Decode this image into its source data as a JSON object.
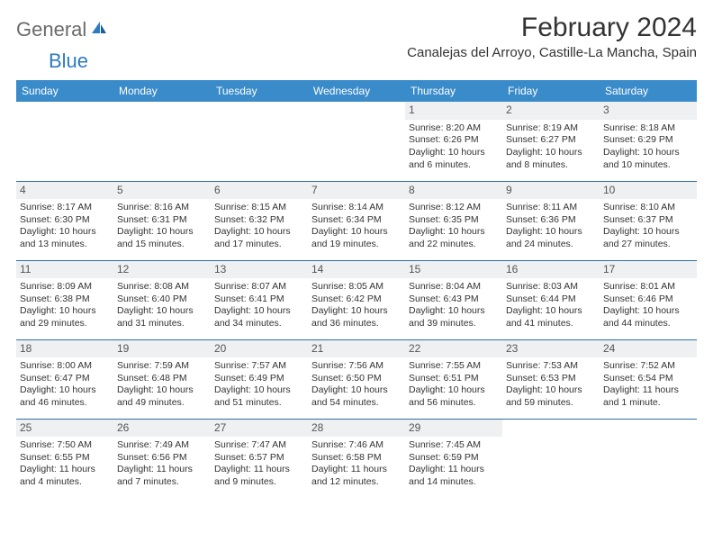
{
  "logo": {
    "part1": "General",
    "part2": "Blue"
  },
  "title": "February 2024",
  "location": "Canalejas del Arroyo, Castille-La Mancha, Spain",
  "headers": [
    "Sunday",
    "Monday",
    "Tuesday",
    "Wednesday",
    "Thursday",
    "Friday",
    "Saturday"
  ],
  "colors": {
    "header_bg": "#3a8bc9",
    "header_fg": "#ffffff",
    "daynum_bg": "#eef0f1",
    "border": "#2f6fa8",
    "logo_gray": "#6b6b6b",
    "logo_blue": "#2f7bbf"
  },
  "weeks": [
    [
      {
        "n": "",
        "empty": true
      },
      {
        "n": "",
        "empty": true
      },
      {
        "n": "",
        "empty": true
      },
      {
        "n": "",
        "empty": true
      },
      {
        "n": "1",
        "sr": "Sunrise: 8:20 AM",
        "ss": "Sunset: 6:26 PM",
        "dl": "Daylight: 10 hours and 6 minutes."
      },
      {
        "n": "2",
        "sr": "Sunrise: 8:19 AM",
        "ss": "Sunset: 6:27 PM",
        "dl": "Daylight: 10 hours and 8 minutes."
      },
      {
        "n": "3",
        "sr": "Sunrise: 8:18 AM",
        "ss": "Sunset: 6:29 PM",
        "dl": "Daylight: 10 hours and 10 minutes."
      }
    ],
    [
      {
        "n": "4",
        "sr": "Sunrise: 8:17 AM",
        "ss": "Sunset: 6:30 PM",
        "dl": "Daylight: 10 hours and 13 minutes."
      },
      {
        "n": "5",
        "sr": "Sunrise: 8:16 AM",
        "ss": "Sunset: 6:31 PM",
        "dl": "Daylight: 10 hours and 15 minutes."
      },
      {
        "n": "6",
        "sr": "Sunrise: 8:15 AM",
        "ss": "Sunset: 6:32 PM",
        "dl": "Daylight: 10 hours and 17 minutes."
      },
      {
        "n": "7",
        "sr": "Sunrise: 8:14 AM",
        "ss": "Sunset: 6:34 PM",
        "dl": "Daylight: 10 hours and 19 minutes."
      },
      {
        "n": "8",
        "sr": "Sunrise: 8:12 AM",
        "ss": "Sunset: 6:35 PM",
        "dl": "Daylight: 10 hours and 22 minutes."
      },
      {
        "n": "9",
        "sr": "Sunrise: 8:11 AM",
        "ss": "Sunset: 6:36 PM",
        "dl": "Daylight: 10 hours and 24 minutes."
      },
      {
        "n": "10",
        "sr": "Sunrise: 8:10 AM",
        "ss": "Sunset: 6:37 PM",
        "dl": "Daylight: 10 hours and 27 minutes."
      }
    ],
    [
      {
        "n": "11",
        "sr": "Sunrise: 8:09 AM",
        "ss": "Sunset: 6:38 PM",
        "dl": "Daylight: 10 hours and 29 minutes."
      },
      {
        "n": "12",
        "sr": "Sunrise: 8:08 AM",
        "ss": "Sunset: 6:40 PM",
        "dl": "Daylight: 10 hours and 31 minutes."
      },
      {
        "n": "13",
        "sr": "Sunrise: 8:07 AM",
        "ss": "Sunset: 6:41 PM",
        "dl": "Daylight: 10 hours and 34 minutes."
      },
      {
        "n": "14",
        "sr": "Sunrise: 8:05 AM",
        "ss": "Sunset: 6:42 PM",
        "dl": "Daylight: 10 hours and 36 minutes."
      },
      {
        "n": "15",
        "sr": "Sunrise: 8:04 AM",
        "ss": "Sunset: 6:43 PM",
        "dl": "Daylight: 10 hours and 39 minutes."
      },
      {
        "n": "16",
        "sr": "Sunrise: 8:03 AM",
        "ss": "Sunset: 6:44 PM",
        "dl": "Daylight: 10 hours and 41 minutes."
      },
      {
        "n": "17",
        "sr": "Sunrise: 8:01 AM",
        "ss": "Sunset: 6:46 PM",
        "dl": "Daylight: 10 hours and 44 minutes."
      }
    ],
    [
      {
        "n": "18",
        "sr": "Sunrise: 8:00 AM",
        "ss": "Sunset: 6:47 PM",
        "dl": "Daylight: 10 hours and 46 minutes."
      },
      {
        "n": "19",
        "sr": "Sunrise: 7:59 AM",
        "ss": "Sunset: 6:48 PM",
        "dl": "Daylight: 10 hours and 49 minutes."
      },
      {
        "n": "20",
        "sr": "Sunrise: 7:57 AM",
        "ss": "Sunset: 6:49 PM",
        "dl": "Daylight: 10 hours and 51 minutes."
      },
      {
        "n": "21",
        "sr": "Sunrise: 7:56 AM",
        "ss": "Sunset: 6:50 PM",
        "dl": "Daylight: 10 hours and 54 minutes."
      },
      {
        "n": "22",
        "sr": "Sunrise: 7:55 AM",
        "ss": "Sunset: 6:51 PM",
        "dl": "Daylight: 10 hours and 56 minutes."
      },
      {
        "n": "23",
        "sr": "Sunrise: 7:53 AM",
        "ss": "Sunset: 6:53 PM",
        "dl": "Daylight: 10 hours and 59 minutes."
      },
      {
        "n": "24",
        "sr": "Sunrise: 7:52 AM",
        "ss": "Sunset: 6:54 PM",
        "dl": "Daylight: 11 hours and 1 minute."
      }
    ],
    [
      {
        "n": "25",
        "sr": "Sunrise: 7:50 AM",
        "ss": "Sunset: 6:55 PM",
        "dl": "Daylight: 11 hours and 4 minutes."
      },
      {
        "n": "26",
        "sr": "Sunrise: 7:49 AM",
        "ss": "Sunset: 6:56 PM",
        "dl": "Daylight: 11 hours and 7 minutes."
      },
      {
        "n": "27",
        "sr": "Sunrise: 7:47 AM",
        "ss": "Sunset: 6:57 PM",
        "dl": "Daylight: 11 hours and 9 minutes."
      },
      {
        "n": "28",
        "sr": "Sunrise: 7:46 AM",
        "ss": "Sunset: 6:58 PM",
        "dl": "Daylight: 11 hours and 12 minutes."
      },
      {
        "n": "29",
        "sr": "Sunrise: 7:45 AM",
        "ss": "Sunset: 6:59 PM",
        "dl": "Daylight: 11 hours and 14 minutes."
      },
      {
        "n": "",
        "empty": true
      },
      {
        "n": "",
        "empty": true
      }
    ]
  ]
}
